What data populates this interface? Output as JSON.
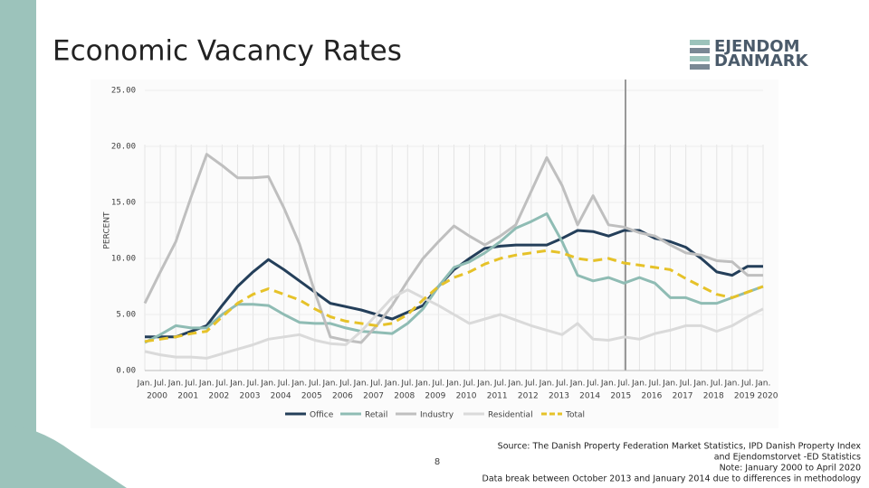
{
  "chart_data": {
    "type": "line",
    "title": "Economic Vacancy Rates",
    "ylabel": "PERCENT",
    "categories": [
      "Jan.",
      "Jul.",
      "Jan.",
      "Jul.",
      "Jan.",
      "Jul.",
      "Jan.",
      "Jul.",
      "Jan.",
      "Jul.",
      "Jan.",
      "Jul.",
      "Jan.",
      "Jul.",
      "Jan.",
      "Jul.",
      "Jan.",
      "Jul.",
      "Jan.",
      "Jul.",
      "Jan.",
      "Jul.",
      "Jan.",
      "Jul.",
      "Jan.",
      "Jul.",
      "Jan.",
      "Jul.",
      "Jan.",
      "Jul.",
      "Jan.",
      "Jul.",
      "Jan.",
      "Jul.",
      "Jan.",
      "Jul.",
      "Jan.",
      "Jul.",
      "Jan.",
      "Jul.",
      "Jan."
    ],
    "years": [
      "2000",
      "2001",
      "2002",
      "2003",
      "2004",
      "2005",
      "2006",
      "2007",
      "2008",
      "2009",
      "2010",
      "2011",
      "2012",
      "2013",
      "2014",
      "2015",
      "2016",
      "2017",
      "2018",
      "2019",
      "2020"
    ],
    "ylim": [
      0,
      25
    ],
    "yticks": [
      {
        "value": 0,
        "label": "0.00"
      },
      {
        "value": 5,
        "label": "5.00"
      },
      {
        "value": 10,
        "label": "10.00"
      },
      {
        "value": 15,
        "label": "15.00"
      },
      {
        "value": 20,
        "label": "20.00"
      },
      {
        "value": 25,
        "label": "25.00"
      }
    ],
    "grid": true,
    "series": [
      {
        "name": "Office",
        "color": "#243f5a",
        "dashed": false,
        "values": [
          3.0,
          3.0,
          3.0,
          3.5,
          4.0,
          5.8,
          7.5,
          8.8,
          9.9,
          9.0,
          8.0,
          7.0,
          6.0,
          5.7,
          5.4,
          5.0,
          4.6,
          5.2,
          5.8,
          7.5,
          9.0,
          10.0,
          10.9,
          11.1,
          11.2,
          11.2,
          11.2,
          11.8,
          12.5,
          12.4,
          12.0,
          12.5,
          12.5,
          11.8,
          11.5,
          11.0,
          10.0,
          8.8,
          8.5,
          9.3,
          9.3
        ]
      },
      {
        "name": "Retail",
        "color": "#8fbcb4",
        "dashed": false,
        "values": [
          2.5,
          3.2,
          4.0,
          3.8,
          3.8,
          5.0,
          5.9,
          5.9,
          5.8,
          5.0,
          4.3,
          4.2,
          4.2,
          3.8,
          3.5,
          3.4,
          3.3,
          4.2,
          5.5,
          7.5,
          9.2,
          9.7,
          10.5,
          11.5,
          12.7,
          13.3,
          14.0,
          11.5,
          8.5,
          8.0,
          8.3,
          7.8,
          8.3,
          7.8,
          6.5,
          6.5,
          6.0,
          6.0,
          6.5,
          7.0,
          7.5
        ]
      },
      {
        "name": "Industry",
        "color": "#bfbfbf",
        "dashed": false,
        "values": [
          6.0,
          8.8,
          11.5,
          15.5,
          19.3,
          18.3,
          17.2,
          17.2,
          17.3,
          14.5,
          11.3,
          7.0,
          3.0,
          2.7,
          2.5,
          4.0,
          5.8,
          8.0,
          10.0,
          11.5,
          12.9,
          12.0,
          11.2,
          12.0,
          13.0,
          16.0,
          19.0,
          16.5,
          13.0,
          15.6,
          13.0,
          12.8,
          12.3,
          12.0,
          11.2,
          10.5,
          10.3,
          9.8,
          9.7,
          8.5,
          8.5
        ]
      },
      {
        "name": "Residential",
        "color": "#dadada",
        "dashed": false,
        "values": [
          1.7,
          1.4,
          1.2,
          1.2,
          1.1,
          1.5,
          1.9,
          2.3,
          2.8,
          3.0,
          3.2,
          2.7,
          2.4,
          2.3,
          3.5,
          5.0,
          6.5,
          7.2,
          6.5,
          5.8,
          5.0,
          4.2,
          4.6,
          5.0,
          4.5,
          4.0,
          3.6,
          3.2,
          4.2,
          2.8,
          2.7,
          3.0,
          2.8,
          3.3,
          3.6,
          4.0,
          4.0,
          3.5,
          4.0,
          4.8,
          5.5
        ]
      },
      {
        "name": "Total",
        "color": "#e6c229",
        "dashed": true,
        "values": [
          2.6,
          2.8,
          3.0,
          3.3,
          3.5,
          4.8,
          6.0,
          6.8,
          7.3,
          6.8,
          6.3,
          5.5,
          4.8,
          4.4,
          4.2,
          4.0,
          4.2,
          5.0,
          6.3,
          7.5,
          8.3,
          8.8,
          9.5,
          10.0,
          10.3,
          10.5,
          10.7,
          10.5,
          10.0,
          9.8,
          10.0,
          9.6,
          9.4,
          9.2,
          9.0,
          8.2,
          7.5,
          6.8,
          6.5,
          7.0,
          7.5
        ]
      }
    ]
  },
  "logo": {
    "line1": "EJENDOM",
    "line2": "DANMARK"
  },
  "page_number": "8",
  "source": [
    "Source: The Danish Property Federation Market Statistics, IPD Danish Property Index",
    "and Ejendomstorvet -ED Statistics",
    "Note: January 2000 to April 2020",
    "Data break between October 2013 and January 2014 due to differences in methodology"
  ]
}
